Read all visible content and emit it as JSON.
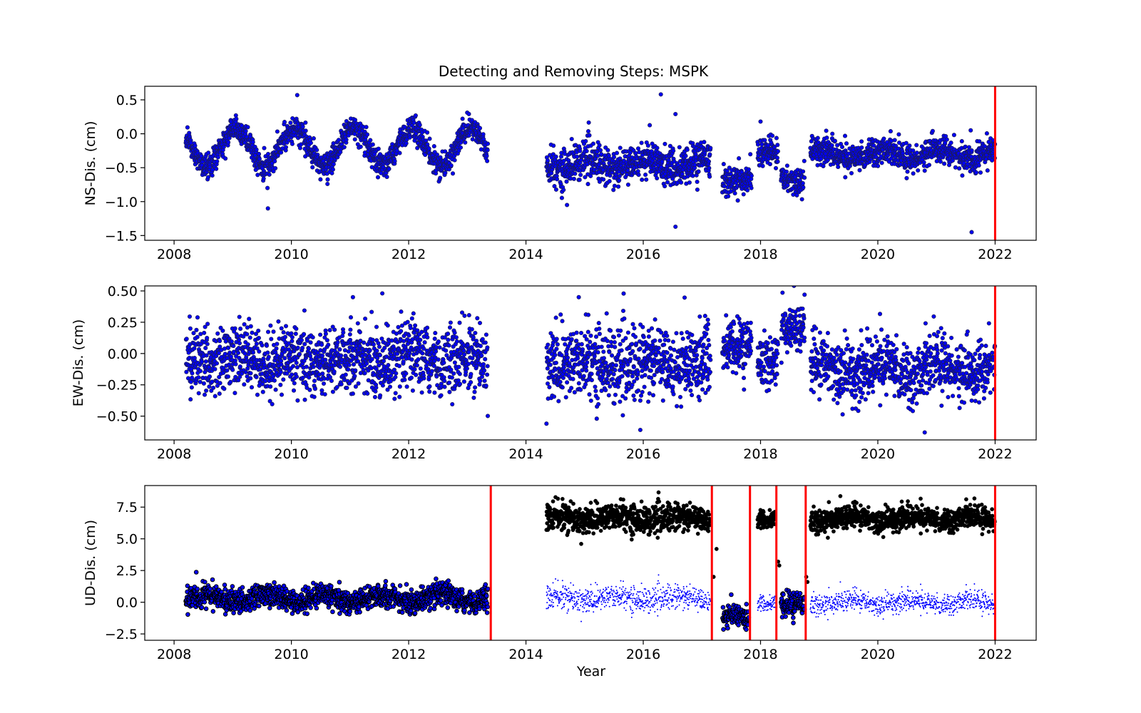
{
  "chart_data": [
    {
      "type": "scatter",
      "title": "Detecting and Removing Steps: MSPK",
      "xlabel": "",
      "ylabel": "NS-Dis. (cm)",
      "xlim": [
        2007.5,
        2022.7
      ],
      "ylim": [
        -1.57,
        0.7
      ],
      "xticks": [
        2008,
        2010,
        2012,
        2014,
        2016,
        2018,
        2020,
        2022
      ],
      "xtick_labels": [
        "2008",
        "2010",
        "2012",
        "2014",
        "2016",
        "2018",
        "2020",
        "2022"
      ],
      "yticks": [
        0.5,
        0.0,
        -0.5,
        -1.0,
        -1.5
      ],
      "ytick_labels": [
        "0.5",
        "0.0",
        "−0.5",
        "−1.0",
        "−1.5"
      ],
      "series": [
        {
          "style": "dark-navy dots with blue fill",
          "color": "#1a1a66",
          "fill": "#0000ff",
          "points": "daily displacement samples (values approximated)"
        }
      ],
      "vertical_lines": [
        {
          "x": 2022.0,
          "color": "#ff0000"
        }
      ],
      "segments": [
        {
          "x": [
            2008.2,
            2013.35
          ],
          "mean": -0.2,
          "amp": 0.28,
          "noise": 0.09
        },
        {
          "x": [
            2014.35,
            2017.15
          ],
          "mean": -0.45,
          "amp": 0.08,
          "noise": 0.14
        },
        {
          "x": [
            2017.35,
            2017.85
          ],
          "mean": -0.68,
          "amp": 0.0,
          "noise": 0.1
        },
        {
          "x": [
            2017.95,
            2018.3
          ],
          "mean": -0.27,
          "amp": 0.0,
          "noise": 0.1
        },
        {
          "x": [
            2018.35,
            2018.75
          ],
          "mean": -0.68,
          "amp": 0.0,
          "noise": 0.1
        },
        {
          "x": [
            2018.85,
            2022.0
          ],
          "mean": -0.3,
          "amp": 0.08,
          "noise": 0.1
        }
      ],
      "outliers": [
        [
          2009.6,
          -1.1
        ],
        [
          2010.1,
          0.57
        ],
        [
          2016.3,
          0.58
        ],
        [
          2016.55,
          0.29
        ],
        [
          2016.55,
          -1.37
        ],
        [
          2021.6,
          -1.45
        ],
        [
          2018.0,
          0.18
        ],
        [
          2014.7,
          -1.05
        ]
      ]
    },
    {
      "type": "scatter",
      "title": "",
      "xlabel": "",
      "ylabel": "EW-Dis. (cm)",
      "xlim": [
        2007.5,
        2022.7
      ],
      "ylim": [
        -0.69,
        0.54
      ],
      "xticks": [
        2008,
        2010,
        2012,
        2014,
        2016,
        2018,
        2020,
        2022
      ],
      "xtick_labels": [
        "2008",
        "2010",
        "2012",
        "2014",
        "2016",
        "2018",
        "2020",
        "2022"
      ],
      "yticks": [
        0.5,
        0.25,
        0.0,
        -0.25,
        -0.5
      ],
      "ytick_labels": [
        "0.50",
        "0.25",
        "0.00",
        "−0.25",
        "−0.50"
      ],
      "series": [
        {
          "style": "dark-navy dots with blue fill",
          "color": "#1a1a66",
          "fill": "#0000ff",
          "points": "daily displacement samples (values approximated)"
        }
      ],
      "vertical_lines": [
        {
          "x": 2022.0,
          "color": "#ff0000"
        }
      ],
      "segments": [
        {
          "x": [
            2008.2,
            2013.35
          ],
          "mean": -0.05,
          "amp": 0.03,
          "noise": 0.13
        },
        {
          "x": [
            2014.35,
            2017.15
          ],
          "mean": -0.08,
          "amp": 0.02,
          "noise": 0.15
        },
        {
          "x": [
            2017.35,
            2017.85
          ],
          "mean": 0.05,
          "amp": 0.0,
          "noise": 0.11
        },
        {
          "x": [
            2017.95,
            2018.3
          ],
          "mean": -0.05,
          "amp": 0.0,
          "noise": 0.1
        },
        {
          "x": [
            2018.35,
            2018.75
          ],
          "mean": 0.2,
          "amp": 0.0,
          "noise": 0.09
        },
        {
          "x": [
            2018.85,
            2022.0
          ],
          "mean": -0.12,
          "amp": 0.04,
          "noise": 0.12
        }
      ],
      "outliers": [
        [
          2014.35,
          -0.56
        ],
        [
          2015.95,
          -0.61
        ],
        [
          2020.8,
          -0.63
        ],
        [
          2011.55,
          0.48
        ],
        [
          2018.75,
          0.47
        ],
        [
          2011.05,
          0.45
        ],
        [
          2014.9,
          0.45
        ]
      ]
    },
    {
      "type": "scatter",
      "title": "",
      "xlabel": "Year",
      "ylabel": "UD-Dis. (cm)",
      "xlim": [
        2007.5,
        2022.7
      ],
      "ylim": [
        -3.0,
        9.2
      ],
      "xticks": [
        2008,
        2010,
        2012,
        2014,
        2016,
        2018,
        2020,
        2022
      ],
      "xtick_labels": [
        "2008",
        "2010",
        "2012",
        "2014",
        "2016",
        "2018",
        "2020",
        "2022"
      ],
      "yticks": [
        7.5,
        5.0,
        2.5,
        0.0,
        -2.5
      ],
      "ytick_labels": [
        "7.5",
        "5.0",
        "2.5",
        "0.0",
        "−2.5"
      ],
      "series": [
        {
          "name": "",
          "style": "black dots (before step removal)",
          "color": "#000000"
        },
        {
          "name": "",
          "style": "small blue dots (after step removal)",
          "color": "#0000ff"
        }
      ],
      "vertical_lines": [
        {
          "x": 2013.4,
          "color": "#ff0000"
        },
        {
          "x": 2017.17,
          "color": "#ff0000"
        },
        {
          "x": 2017.82,
          "color": "#ff0000"
        },
        {
          "x": 2018.27,
          "color": "#ff0000"
        },
        {
          "x": 2018.77,
          "color": "#ff0000"
        },
        {
          "x": 2022.0,
          "color": "#ff0000"
        }
      ],
      "segments": [
        {
          "x": [
            2008.2,
            2013.35
          ],
          "raw_mean": 0.3,
          "corrected_mean": 0.3,
          "noise": 0.45,
          "overlap": true
        },
        {
          "x": [
            2014.35,
            2017.15
          ],
          "raw_mean": 6.6,
          "corrected_mean": 0.3,
          "noise": 0.55,
          "overlap": false
        },
        {
          "x": [
            2017.35,
            2017.8
          ],
          "raw_mean": -1.3,
          "corrected_mean": -1.3,
          "noise": 0.45,
          "overlap": true
        },
        {
          "x": [
            2017.95,
            2018.25
          ],
          "raw_mean": 6.6,
          "corrected_mean": 0.0,
          "noise": 0.35,
          "overlap": false
        },
        {
          "x": [
            2018.35,
            2018.75
          ],
          "raw_mean": -0.4,
          "corrected_mean": -0.4,
          "noise": 0.5,
          "overlap": true
        },
        {
          "x": [
            2018.85,
            2022.0
          ],
          "raw_mean": 6.6,
          "corrected_mean": 0.0,
          "noise": 0.45,
          "overlap": false
        }
      ]
    }
  ]
}
